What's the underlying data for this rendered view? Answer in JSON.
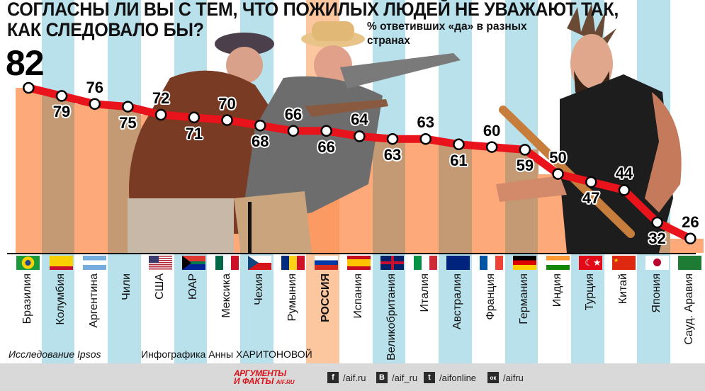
{
  "title": {
    "line1": "СОГЛАСНЫ ЛИ ВЫ С ТЕМ, ЧТО ПОЖИЛЫХ ЛЮДЕЙ НЕ УВАЖАЮТ ТАК,",
    "line2": "КАК СЛЕДОВАЛО БЫ?"
  },
  "subtitle": "% ответивших «да» в разных странах",
  "credits": {
    "source": "Исследование Ipsos",
    "author": "Инфографика Анны ХАРИТОНОВОЙ"
  },
  "footer": {
    "logo_line1": "АРГУМЕНТЫ",
    "logo_line2": "И ФАКТЫ",
    "logo_site": "AIF.RU",
    "social": [
      {
        "icon": "facebook-icon",
        "glyph": "f",
        "label": "/aif.ru"
      },
      {
        "icon": "vk-icon",
        "glyph": "В",
        "label": "/aif_ru"
      },
      {
        "icon": "twitter-icon",
        "glyph": "t",
        "label": "/aifonline"
      },
      {
        "icon": "odnoklassniki-icon",
        "glyph": "ок",
        "label": "/aifru"
      }
    ]
  },
  "colors": {
    "line": "#e8131b",
    "bar_light": "#fda97a",
    "bar_dark": "#c49a74",
    "bar_russia": "#fb9a63",
    "stripe_blue": "#b8e1ec",
    "footer_bg": "#d9d9d9"
  },
  "chart_data": {
    "type": "line",
    "title": "СОГЛАСНЫ ЛИ ВЫ С ТЕМ, ЧТО ПОЖИЛЫХ ЛЮДЕЙ НЕ УВАЖАЮТ ТАК, КАК СЛЕДОВАЛО БЫ?",
    "subtitle": "% ответивших «да» в разных странах",
    "xlabel": "",
    "ylabel": "% ответивших «да»",
    "categories": [
      "Бразилия",
      "Колумбия",
      "Аргентина",
      "Чили",
      "США",
      "ЮАР",
      "Мексика",
      "Чехия",
      "Румыния",
      "РОССИЯ",
      "Испания",
      "Великобритания",
      "Италия",
      "Австралия",
      "Франция",
      "Германия",
      "Индия",
      "Турция",
      "Китай",
      "Япония",
      "Сауд. Аравия"
    ],
    "values": [
      82,
      79,
      76,
      75,
      72,
      71,
      70,
      68,
      66,
      66,
      64,
      63,
      63,
      61,
      60,
      59,
      50,
      47,
      44,
      32,
      26
    ],
    "highlight": "РОССИЯ",
    "grid": false,
    "legend": "none",
    "source": "Исследование Ipsos"
  },
  "labels_above": [
    true,
    false,
    true,
    false,
    true,
    false,
    true,
    false,
    true,
    false,
    true,
    false,
    true,
    false,
    true,
    false,
    true,
    false,
    true,
    false,
    true
  ]
}
